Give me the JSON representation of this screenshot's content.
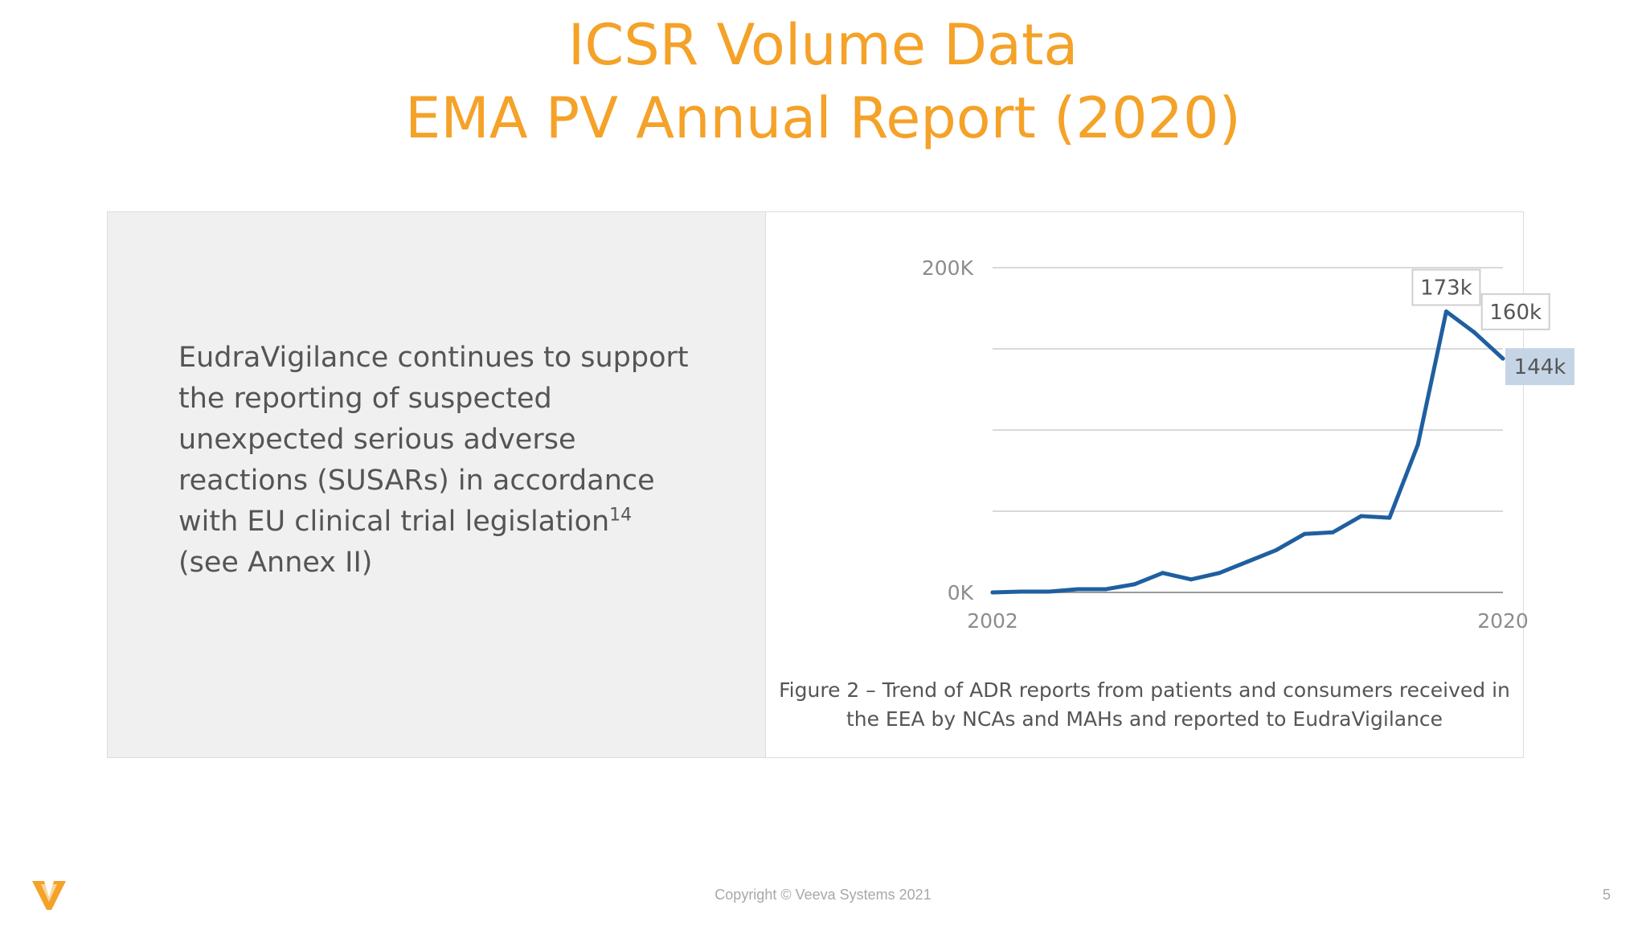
{
  "slide": {
    "title_line1": "ICSR Volume Data",
    "title_line2": "EMA PV Annual Report (2020)",
    "body_text": "EudraVigilance continues to support the reporting of suspected unexpected serious adverse reactions (SUSARs) in accordance with EU clinical trial legislation",
    "body_superscript": "14",
    "body_text_tail": "(see Annex II)",
    "caption": "Figure 2 – Trend of ADR reports from patients and consumers received in the EEA by NCAs and MAHs and reported to EudraVigilance",
    "footer": "Copyright © Veeva Systems 2021",
    "page_number": "5",
    "accent_color": "#f4a228",
    "logo_icon": "veeva-v-logo-icon"
  },
  "chart_data": {
    "type": "line",
    "x": [
      2002,
      2003,
      2004,
      2005,
      2006,
      2007,
      2008,
      2009,
      2010,
      2011,
      2012,
      2013,
      2014,
      2015,
      2016,
      2017,
      2018,
      2019,
      2020
    ],
    "series": [
      {
        "values": [
          0,
          500,
          500,
          2000,
          2000,
          5000,
          12000,
          8000,
          12000,
          19000,
          26000,
          36000,
          37000,
          47000,
          46000,
          91000,
          173000,
          160000,
          144000
        ],
        "color": "#1f5fa0"
      }
    ],
    "ylim": [
      0,
      200000
    ],
    "y_gridlines": [
      0,
      50000,
      100000,
      150000,
      200000
    ],
    "y_tick_labels": [
      {
        "value": 0,
        "label": "0K"
      },
      {
        "value": 200000,
        "label": "200K"
      }
    ],
    "x_tick_labels": [
      {
        "value": 2002,
        "label": "2002"
      },
      {
        "value": 2020,
        "label": "2020"
      }
    ],
    "data_labels": [
      {
        "x": 2018,
        "label": "173k",
        "highlight": false
      },
      {
        "x": 2019,
        "label": "160k",
        "highlight": false
      },
      {
        "x": 2020,
        "label": "144k",
        "highlight": true
      }
    ],
    "grid": true,
    "legend": "none"
  }
}
